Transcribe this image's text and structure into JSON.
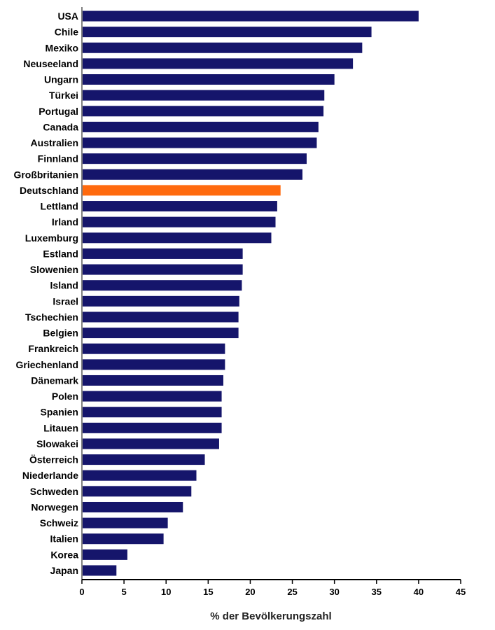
{
  "chart_data": {
    "type": "bar",
    "orientation": "horizontal",
    "title": "",
    "xlabel": "% der Bevölkerungszahl",
    "ylabel": "",
    "xlim": [
      0,
      45
    ],
    "xticks": [
      "0",
      "5",
      "10",
      "15",
      "20",
      "25",
      "30",
      "35",
      "40",
      "45"
    ],
    "grid": false,
    "categories": [
      "USA",
      "Chile",
      "Mexiko",
      "Neuseeland",
      "Ungarn",
      "Türkei",
      "Portugal",
      "Canada",
      "Australien",
      "Finnland",
      "Großbritanien",
      "Deutschland",
      "Lettland",
      "Irland",
      "Luxemburg",
      "Estland",
      "Slowenien",
      "Island",
      "Israel",
      "Tschechien",
      "Belgien",
      "Frankreich",
      "Griechenland",
      "Dänemark",
      "Polen",
      "Spanien",
      "Litauen",
      "Slowakei",
      "Österreich",
      "Niederlande",
      "Schweden",
      "Norwegen",
      "Schweiz",
      "Italien",
      "Korea",
      "Japan"
    ],
    "values": [
      40.0,
      34.4,
      33.3,
      32.2,
      30.0,
      28.8,
      28.7,
      28.1,
      27.9,
      26.7,
      26.2,
      23.6,
      23.2,
      23.0,
      22.5,
      19.1,
      19.1,
      19.0,
      18.7,
      18.6,
      18.6,
      17.0,
      17.0,
      16.8,
      16.6,
      16.6,
      16.6,
      16.3,
      14.6,
      13.6,
      13.0,
      12.0,
      10.2,
      9.7,
      5.4,
      4.1
    ],
    "highlight": "Deutschland",
    "colors": {
      "default": "#15156b",
      "highlight": "#ff6a0e"
    }
  }
}
